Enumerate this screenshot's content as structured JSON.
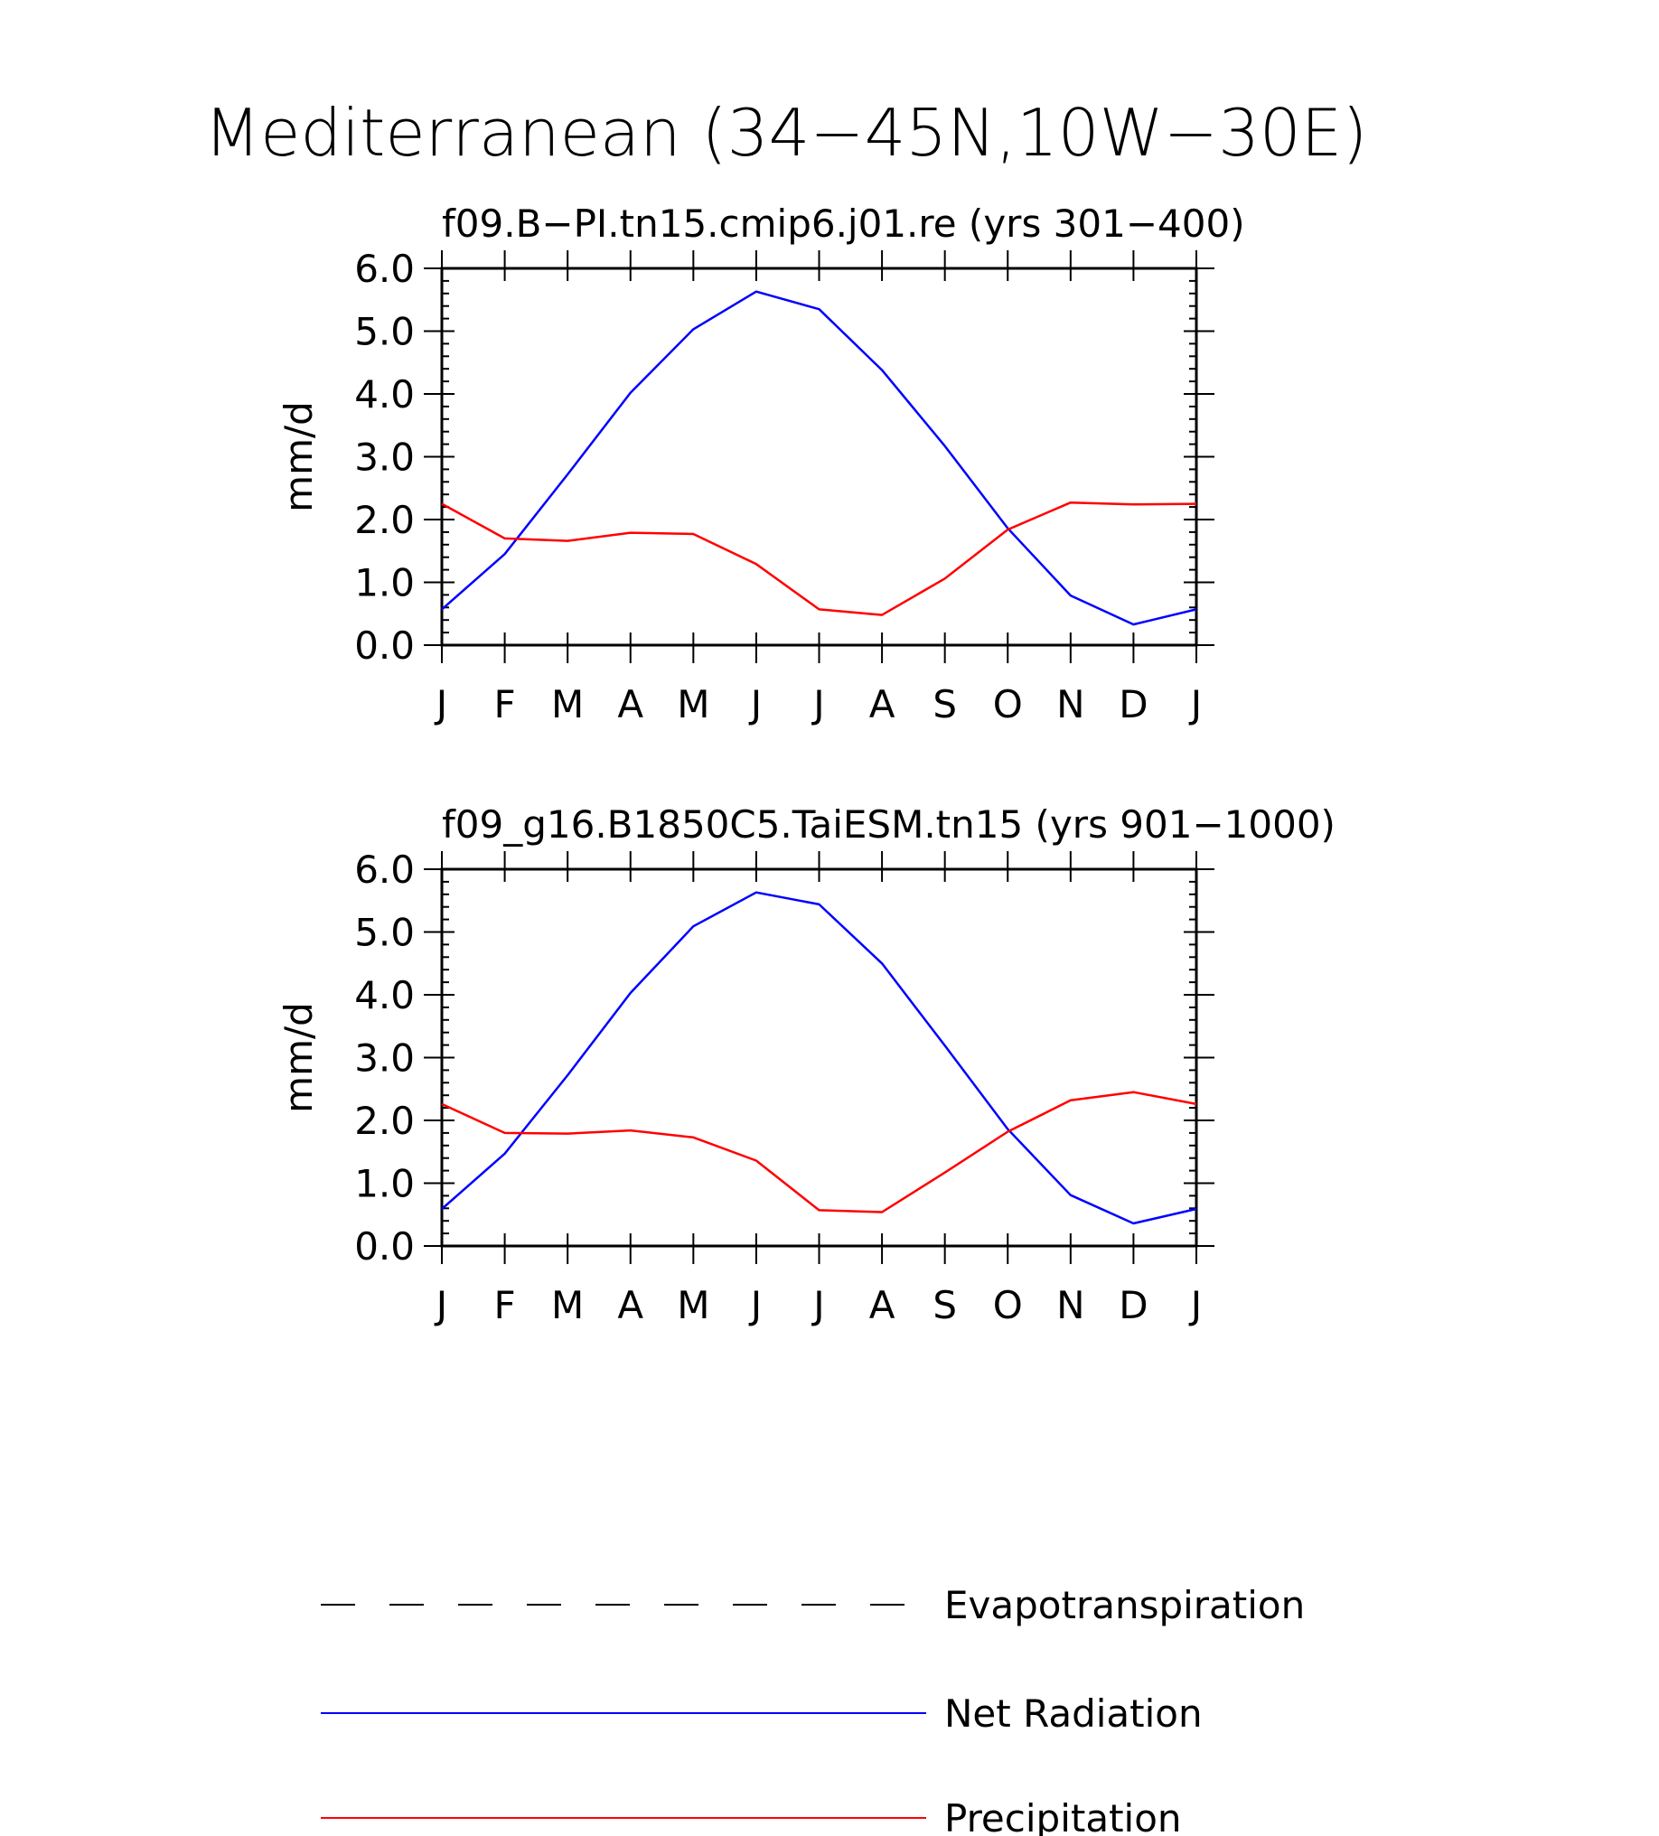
{
  "figure_title": "Mediterranean (34−45N,10W−30E)",
  "colors": {
    "net_radiation": "#0000ff",
    "precipitation": "#ff0000",
    "evapotranspiration": "#000000",
    "axes": "#000000",
    "background": "#ffffff"
  },
  "chart_data": [
    {
      "type": "line",
      "title": "f09.B−PI.tn15.cmip6.j01.re (yrs 301−400)",
      "xlabel": "",
      "ylabel": "mm/d",
      "categories": [
        "J",
        "F",
        "M",
        "A",
        "M",
        "J",
        "J",
        "A",
        "S",
        "O",
        "N",
        "D",
        "J"
      ],
      "ylim": [
        0,
        6
      ],
      "yticks": [
        "0.0",
        "1.0",
        "2.0",
        "3.0",
        "4.0",
        "5.0",
        "6.0"
      ],
      "grid": false,
      "series": [
        {
          "name": "Net Radiation",
          "color": "#0000ff",
          "values": [
            0.57,
            1.45,
            2.72,
            4.02,
            5.03,
            5.63,
            5.35,
            4.38,
            3.17,
            1.86,
            0.79,
            0.33,
            0.57
          ]
        },
        {
          "name": "Precipitation",
          "color": "#ff0000",
          "values": [
            2.25,
            1.7,
            1.66,
            1.79,
            1.77,
            1.29,
            0.57,
            0.48,
            1.06,
            1.84,
            2.27,
            2.24,
            2.25
          ]
        }
      ]
    },
    {
      "type": "line",
      "title": "f09_g16.B1850C5.TaiESM.tn15 (yrs 901−1000)",
      "xlabel": "",
      "ylabel": "mm/d",
      "categories": [
        "J",
        "F",
        "M",
        "A",
        "M",
        "J",
        "J",
        "A",
        "S",
        "O",
        "N",
        "D",
        "J"
      ],
      "ylim": [
        0,
        6
      ],
      "yticks": [
        "0.0",
        "1.0",
        "2.0",
        "3.0",
        "4.0",
        "5.0",
        "6.0"
      ],
      "grid": false,
      "series": [
        {
          "name": "Net Radiation",
          "color": "#0000ff",
          "values": [
            0.59,
            1.47,
            2.72,
            4.03,
            5.09,
            5.63,
            5.44,
            4.5,
            3.19,
            1.86,
            0.81,
            0.36,
            0.59
          ]
        },
        {
          "name": "Precipitation",
          "color": "#ff0000",
          "values": [
            2.26,
            1.8,
            1.79,
            1.84,
            1.73,
            1.36,
            0.57,
            0.54,
            1.17,
            1.82,
            2.32,
            2.45,
            2.26
          ]
        }
      ]
    }
  ],
  "legend": {
    "placement": "bottom",
    "entries": [
      {
        "label": "Evapotranspiration",
        "style": "dashed",
        "color": "#000000"
      },
      {
        "label": "Net Radiation",
        "style": "solid",
        "color": "#0000ff"
      },
      {
        "label": "Precipitation",
        "style": "solid",
        "color": "#ff0000"
      }
    ]
  }
}
